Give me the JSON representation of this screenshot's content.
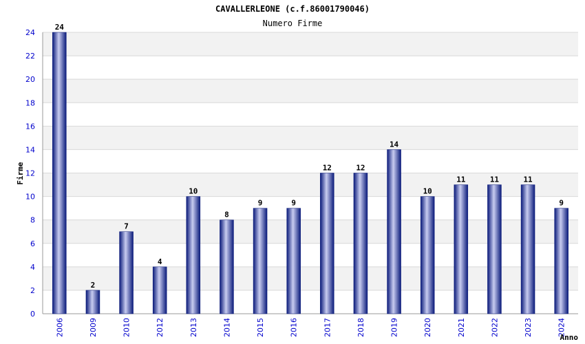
{
  "chart_data": {
    "type": "bar",
    "title": "CAVALLERLEONE (c.f.86001790046)",
    "subtitle": "Numero Firme",
    "xlabel": "Anno",
    "ylabel": "Firme",
    "ylim": [
      0,
      24
    ],
    "yticks": [
      0,
      2,
      4,
      6,
      8,
      10,
      12,
      14,
      16,
      18,
      20,
      22,
      24
    ],
    "grid": true,
    "categories": [
      "2006",
      "2009",
      "2010",
      "2012",
      "2013",
      "2014",
      "2015",
      "2016",
      "2017",
      "2018",
      "2019",
      "2020",
      "2021",
      "2022",
      "2023",
      "2024"
    ],
    "values": [
      24,
      2,
      7,
      4,
      10,
      8,
      9,
      9,
      12,
      12,
      14,
      10,
      11,
      11,
      11,
      9
    ],
    "colors": {
      "bar_dark": "#0a1a7a",
      "bar_light": "#c8ccf0",
      "band": "#f2f2f2",
      "grid": "#d8d8d8",
      "axis": "#999999",
      "tick_text": "#0000cc"
    }
  }
}
